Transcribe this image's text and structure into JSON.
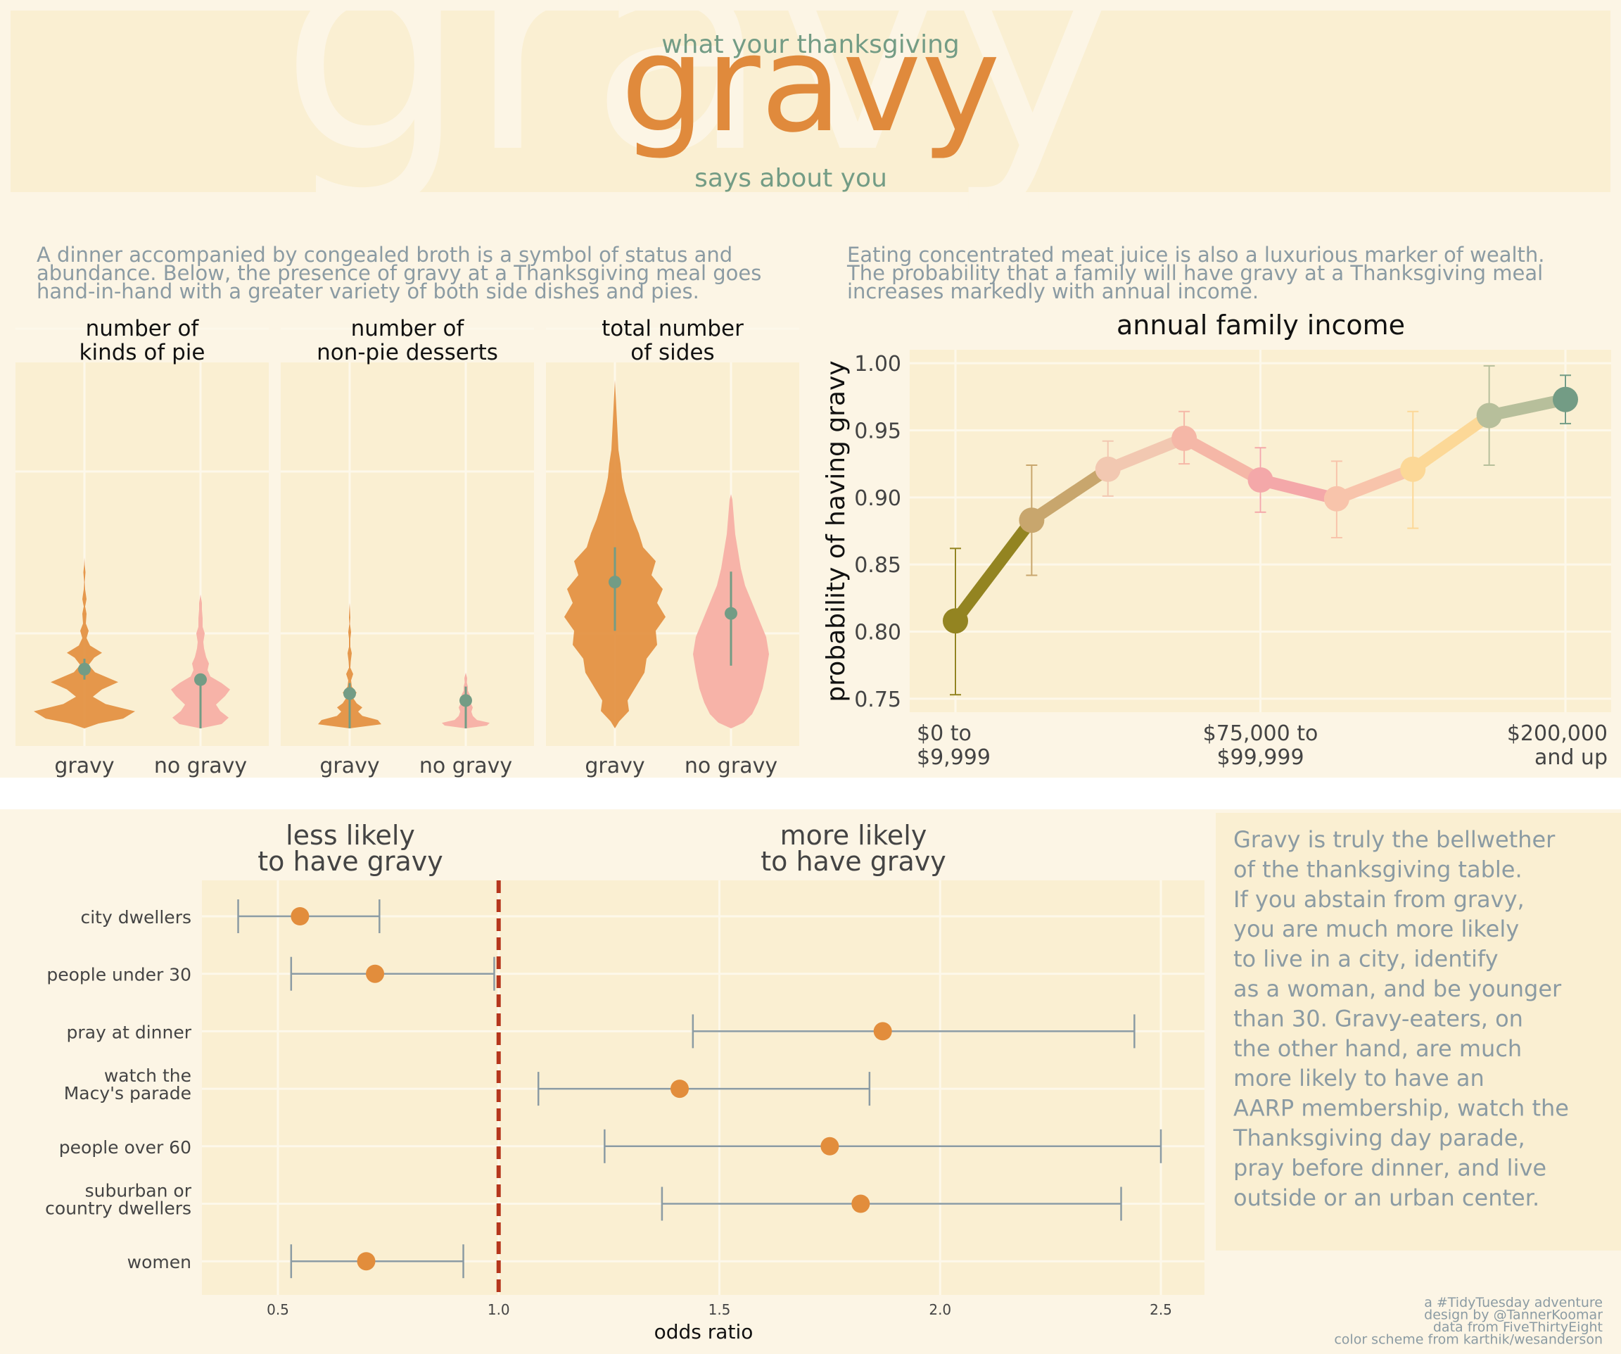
{
  "header": {
    "watermark": "gravy",
    "pretitle": "what your thanksgiving",
    "title": "gravy",
    "subtitle": "says about you"
  },
  "intro": {
    "left": [
      "A dinner accompanied by congealed broth is a symbol of status and",
      "abundance. Below, the presence of gravy at a Thanksgiving meal goes",
      "hand-in-hand with a greater variety of both side dishes and pies."
    ],
    "right": [
      "Eating concentrated meat juice is also a luxurious marker of wealth.",
      "The probability that a family will have gravy at a Thanksgiving meal",
      "increases markedly with annual income."
    ]
  },
  "sidebar": {
    "lines": [
      "Gravy is truly the bellwether",
      "of the thanksgiving table.",
      "If you abstain from gravy,",
      "you are much more likely",
      "to live in a city, identify",
      "as a woman, and be younger",
      "than 30. Gravy-eaters, on",
      "the other hand, are much",
      "more likely to have an",
      "AARP membership, watch the",
      "Thanksgiving day parade,",
      "pray before dinner, and live",
      "outside or an urban center."
    ]
  },
  "credits": [
    "a #TidyTuesday adventure",
    "design by @TannerKoomar",
    "data from FiveThirtyEight",
    "color scheme from karthik/wesanderson"
  ],
  "colors": {
    "gravy": "#e28d3c",
    "no_gravy": "#f7b3a8",
    "teal": "#739c85",
    "panel": "#faefd2",
    "page": "#fcf5e5",
    "text_grey": "#8b9ba3",
    "ref_line": "#b5361c"
  },
  "chart_data": [
    {
      "type": "violin",
      "title": "number of\nkinds of pie",
      "categories": [
        "gravy",
        "no gravy"
      ],
      "series": [
        {
          "name": "gravy",
          "mean": 1.3,
          "ci": [
            1.1,
            1.5
          ],
          "range": [
            0,
            8
          ]
        },
        {
          "name": "no gravy",
          "mean": 0.9,
          "ci": [
            0.0,
            1.3
          ],
          "range": [
            0,
            6
          ]
        }
      ]
    },
    {
      "type": "violin",
      "title": "number of\nnon-pie desserts",
      "categories": [
        "gravy",
        "no gravy"
      ],
      "series": [
        {
          "name": "gravy",
          "mean": 0.6,
          "ci": [
            0.0,
            0.8
          ],
          "range": [
            0,
            7
          ]
        },
        {
          "name": "no gravy",
          "mean": 0.4,
          "ci": [
            0.0,
            0.6
          ],
          "range": [
            0,
            4
          ]
        }
      ]
    },
    {
      "type": "violin",
      "title": "total number\nof sides",
      "categories": [
        "gravy",
        "no gravy"
      ],
      "series": [
        {
          "name": "gravy",
          "mean": 4.6,
          "ci": [
            3.2,
            5.8
          ],
          "range": [
            0,
            12
          ]
        },
        {
          "name": "no gravy",
          "mean": 3.4,
          "ci": [
            2.2,
            4.8
          ],
          "range": [
            0,
            9
          ]
        }
      ]
    },
    {
      "type": "line",
      "title": "annual family income",
      "ylabel": "probability of having gravy",
      "ylim": [
        0.74,
        1.01
      ],
      "yticks": [
        0.75,
        0.8,
        0.85,
        0.9,
        0.95,
        1.0
      ],
      "tick_labels": [
        {
          "index": 0,
          "label": "$0 to\n$9,999"
        },
        {
          "index": 4,
          "label": "$75,000 to\n$99,999"
        },
        {
          "index": 8,
          "label": "$200,000\nand up"
        }
      ],
      "points": [
        {
          "y": 0.808,
          "lo": 0.753,
          "hi": 0.862,
          "color": "#938421"
        },
        {
          "y": 0.883,
          "lo": 0.842,
          "hi": 0.924,
          "color": "#c8a66d"
        },
        {
          "y": 0.921,
          "lo": 0.901,
          "hi": 0.942,
          "color": "#f2c8b1"
        },
        {
          "y": 0.944,
          "lo": 0.925,
          "hi": 0.964,
          "color": "#f5b7a7"
        },
        {
          "y": 0.913,
          "lo": 0.889,
          "hi": 0.937,
          "color": "#f4a8a9"
        },
        {
          "y": 0.899,
          "lo": 0.87,
          "hi": 0.927,
          "color": "#f8c4ab"
        },
        {
          "y": 0.921,
          "lo": 0.877,
          "hi": 0.964,
          "color": "#fcd897"
        },
        {
          "y": 0.961,
          "lo": 0.924,
          "hi": 0.998,
          "color": "#b7bf9b"
        },
        {
          "y": 0.973,
          "lo": 0.955,
          "hi": 0.991,
          "color": "#739c85"
        }
      ]
    },
    {
      "type": "forest",
      "xlabel": "odds ratio",
      "xlim": [
        0.3,
        2.6
      ],
      "xticks": [
        0.5,
        1.0,
        1.5,
        2.0,
        2.5
      ],
      "ref_x": 1.0,
      "left_heading": "less likely\nto have gravy",
      "right_heading": "more likely\nto have gravy",
      "rows": [
        {
          "label": "city dwellers",
          "or": 0.55,
          "lo": 0.41,
          "hi": 0.73
        },
        {
          "label": "people under 30",
          "or": 0.72,
          "lo": 0.53,
          "hi": 0.99
        },
        {
          "label": "pray at dinner",
          "or": 1.87,
          "lo": 1.44,
          "hi": 2.44
        },
        {
          "label": "watch the\nMacy's parade",
          "or": 1.41,
          "lo": 1.09,
          "hi": 1.84
        },
        {
          "label": "people over 60",
          "or": 1.75,
          "lo": 1.24,
          "hi": 2.5
        },
        {
          "label": "suburban or\ncountry dwellers",
          "or": 1.82,
          "lo": 1.37,
          "hi": 2.41
        },
        {
          "label": "women",
          "or": 0.7,
          "lo": 0.53,
          "hi": 0.92
        }
      ]
    }
  ]
}
